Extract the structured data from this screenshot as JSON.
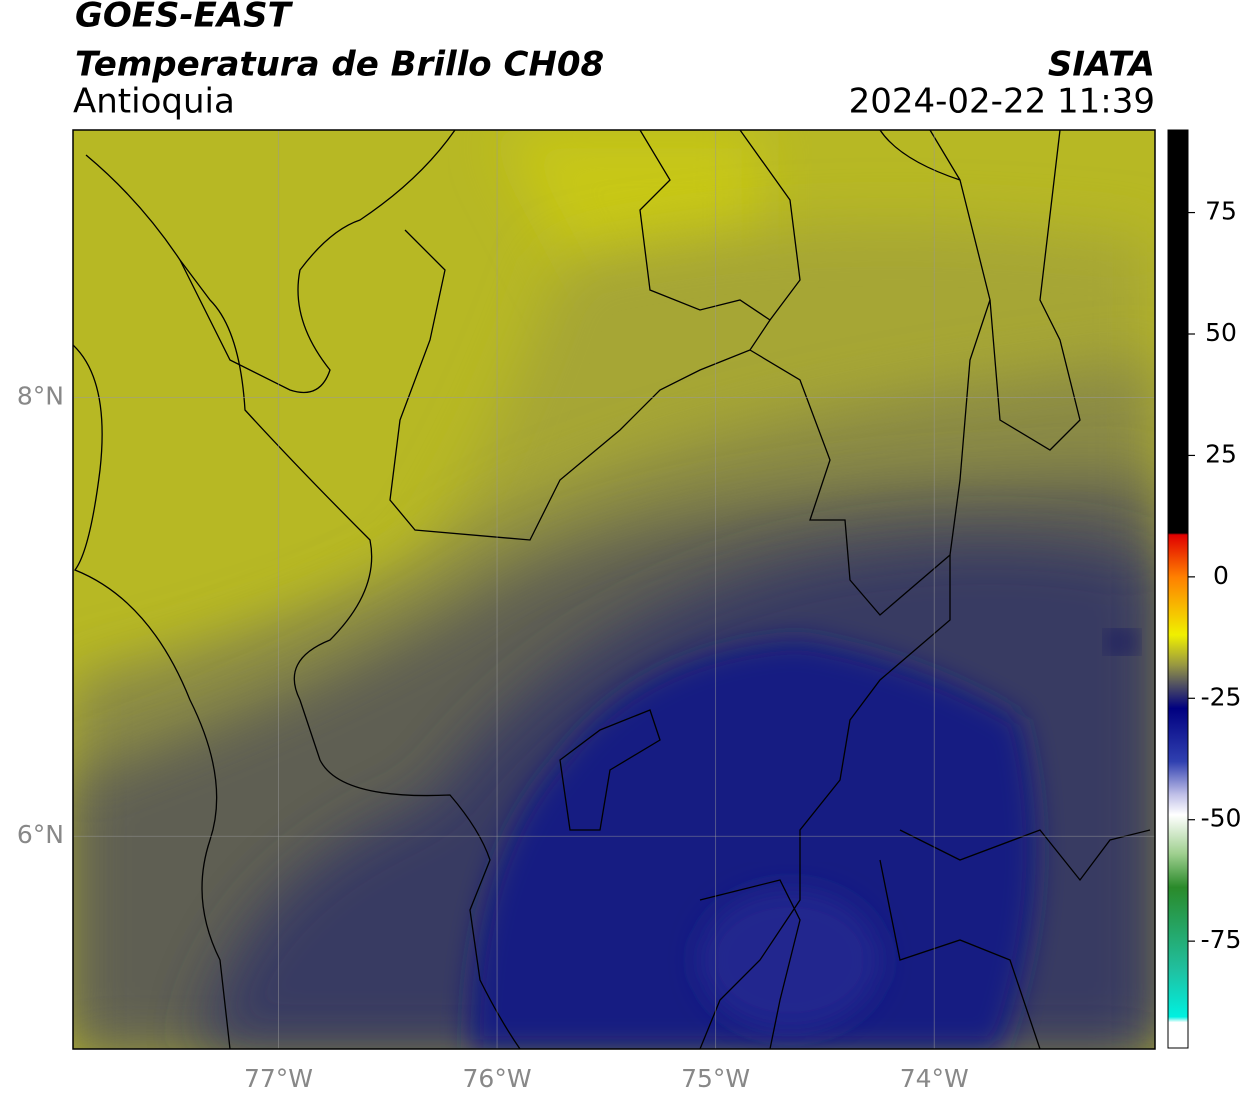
{
  "header": {
    "title": "GOES-EAST",
    "subtitle": "Temperatura de Brillo CH08",
    "region": "Antioquia",
    "source": "SIATA",
    "timestamp": "2024-02-22 11:39"
  },
  "map": {
    "xlim": [
      -77.94,
      -72.99
    ],
    "ylim": [
      5.03,
      9.22
    ],
    "xticks": [
      {
        "value": -77,
        "label": "77°W"
      },
      {
        "value": -76,
        "label": "76°W"
      },
      {
        "value": -75,
        "label": "75°W"
      },
      {
        "value": -74,
        "label": "74°W"
      }
    ],
    "yticks": [
      {
        "value": 6,
        "label": "6°N"
      },
      {
        "value": 8,
        "label": "8°N"
      }
    ],
    "grid": true
  },
  "colorbar": {
    "lim": [
      -97,
      92
    ],
    "ticks": [
      75,
      50,
      25,
      0,
      -25,
      -50,
      -75
    ]
  }
}
